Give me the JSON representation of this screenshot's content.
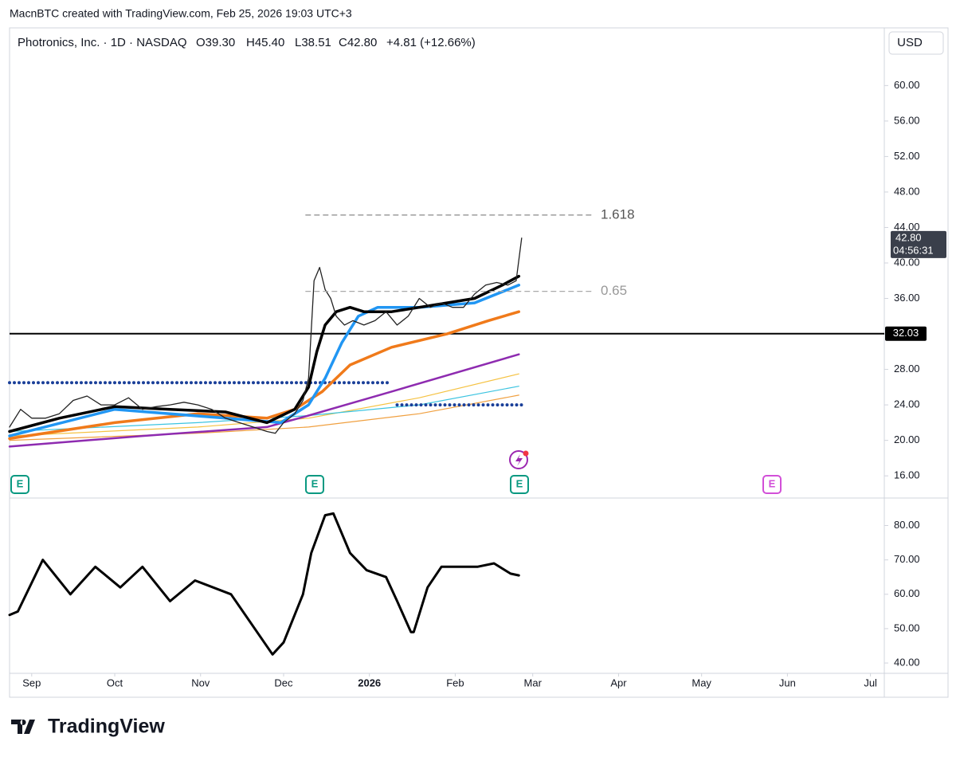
{
  "header": {
    "credit": "MacnBTC created with TradingView.com, Feb 25, 2026 19:03 UTC+3"
  },
  "legend": {
    "symbol": "Photronics, Inc. · 1D · NASDAQ",
    "open": "O39.30",
    "high": "H45.40",
    "low": "L38.51",
    "close": "C42.80",
    "change": "+4.81 (+12.66%)"
  },
  "currency": "USD",
  "footer": {
    "brand": "TradingView"
  },
  "chart_data": [
    {
      "type": "line",
      "xlim": [
        -8,
        308
      ],
      "ylim": [
        13.5,
        66.5
      ],
      "yticks": [
        {
          "value": 16,
          "label": "16.00"
        },
        {
          "value": 20,
          "label": "20.00"
        },
        {
          "value": 24,
          "label": "24.00"
        },
        {
          "value": 28,
          "label": "28.00"
        },
        {
          "value": 32,
          "label": "32.00"
        },
        {
          "value": 36,
          "label": "36.00"
        },
        {
          "value": 40,
          "label": "40.00"
        },
        {
          "value": 44,
          "label": "44.00"
        },
        {
          "value": 48,
          "label": "48.00"
        },
        {
          "value": 52,
          "label": "52.00"
        },
        {
          "value": 56,
          "label": "56.00"
        },
        {
          "value": 60,
          "label": "60.00"
        }
      ],
      "series": [
        {
          "color": "#f5c242",
          "line_style": "solid",
          "x": [
            -8,
            60,
            100,
            140,
            176
          ],
          "values": [
            20.5,
            21.5,
            22.5,
            24.8,
            27.5
          ]
        },
        {
          "color": "#3cc4e0",
          "line_style": "solid",
          "x": [
            -8,
            60,
            100,
            140,
            176
          ],
          "values": [
            21.0,
            22.0,
            22.8,
            24.0,
            26.1
          ]
        },
        {
          "color": "#f0a040",
          "line_style": "solid",
          "x": [
            -8,
            60,
            100,
            140,
            176
          ],
          "values": [
            20.0,
            20.8,
            21.5,
            23.0,
            25.1
          ]
        },
        {
          "color": "#1a3f99",
          "line_style": "dotted",
          "x": [
            -8,
            130
          ],
          "values": [
            26.5,
            26.5
          ]
        },
        {
          "color": "#1a3f99",
          "line_style": "dotted",
          "x": [
            132,
            177
          ],
          "values": [
            24.0,
            24.0
          ]
        },
        {
          "color": "#8e2bb0",
          "line_style": "solid",
          "x": [
            -8,
            40,
            85,
            100,
            130,
            176
          ],
          "values": [
            19.3,
            20.5,
            21.5,
            22.8,
            25.5,
            29.7
          ]
        },
        {
          "color": "#f07a1a",
          "line_style": "solid",
          "x": [
            -8,
            30,
            60,
            85,
            95,
            105,
            115,
            130,
            150,
            165,
            176
          ],
          "values": [
            20.2,
            22.0,
            23.0,
            22.5,
            23.5,
            25.5,
            28.5,
            30.5,
            32.0,
            33.5,
            34.5
          ]
        },
        {
          "color": "#2196f3",
          "line_style": "solid",
          "x": [
            -8,
            30,
            70,
            90,
            100,
            106,
            112,
            118,
            125,
            140,
            160,
            176
          ],
          "values": [
            20.5,
            23.5,
            22.5,
            22.0,
            24.0,
            27.0,
            31.0,
            34.0,
            35.0,
            35.0,
            35.5,
            37.5
          ]
        },
        {
          "color": "#000000",
          "line_style": "solid",
          "x": [
            -8,
            10,
            30,
            50,
            70,
            85,
            95,
            100,
            103,
            106,
            110,
            115,
            120,
            130,
            140,
            150,
            160,
            170,
            176
          ],
          "values": [
            21.0,
            22.5,
            23.8,
            23.5,
            23.2,
            22.0,
            23.5,
            26.0,
            30.0,
            33.0,
            34.5,
            35.0,
            34.5,
            34.5,
            35.0,
            35.5,
            36.0,
            37.5,
            38.5
          ]
        },
        {
          "color": "#222222",
          "line_style": "price",
          "x": [
            -8,
            -4,
            0,
            5,
            10,
            15,
            20,
            25,
            30,
            35,
            40,
            45,
            50,
            55,
            60,
            65,
            70,
            75,
            80,
            85,
            88,
            91,
            95,
            98,
            100,
            102,
            104,
            106,
            108,
            110,
            113,
            116,
            120,
            124,
            128,
            132,
            136,
            140,
            144,
            148,
            152,
            156,
            160,
            164,
            168,
            172,
            175,
            177
          ],
          "values": [
            21.5,
            23.5,
            22.5,
            22.5,
            23.0,
            24.5,
            25.0,
            24.0,
            24.0,
            24.8,
            23.5,
            23.8,
            24.0,
            24.3,
            24.0,
            23.5,
            22.5,
            22.0,
            21.5,
            21.0,
            20.8,
            22.0,
            23.0,
            24.5,
            27.0,
            38.0,
            39.5,
            37.0,
            36.0,
            34.0,
            33.0,
            33.5,
            33.0,
            33.5,
            34.5,
            33.0,
            34.0,
            36.0,
            35.0,
            35.5,
            35.0,
            35.0,
            36.5,
            37.5,
            37.8,
            37.5,
            38.0,
            42.8
          ]
        },
        {
          "color": "#888888",
          "line_style": "dashed",
          "x": [
            99,
            203
          ],
          "values": [
            45.4,
            45.4
          ]
        },
        {
          "color": "#aaaaaa",
          "line_style": "dashed",
          "x": [
            99,
            203
          ],
          "values": [
            36.8,
            36.8
          ]
        }
      ],
      "annotations": [
        {
          "text": "1.618",
          "y": 45.4
        },
        {
          "text": "0.65",
          "y": 36.8
        }
      ],
      "level": 32.03,
      "last_price": {
        "value": 42.8,
        "label": "42.80",
        "countdown": "04:56:31"
      }
    },
    {
      "type": "line",
      "xlim": [
        -8,
        308
      ],
      "ylim": [
        37,
        88
      ],
      "xticks": [
        {
          "value": 0,
          "label": "Sep"
        },
        {
          "value": 30,
          "label": "Oct"
        },
        {
          "value": 61,
          "label": "Nov"
        },
        {
          "value": 91,
          "label": "Dec"
        },
        {
          "value": 122,
          "label": "2026"
        },
        {
          "value": 153,
          "label": "Feb"
        },
        {
          "value": 181,
          "label": "Mar"
        },
        {
          "value": 212,
          "label": "Apr"
        },
        {
          "value": 242,
          "label": "May"
        },
        {
          "value": 273,
          "label": "Jun"
        },
        {
          "value": 303,
          "label": "Jul"
        }
      ],
      "yticks": [
        {
          "value": 40,
          "label": "40.00"
        },
        {
          "value": 50,
          "label": "50.00"
        },
        {
          "value": 60,
          "label": "60.00"
        },
        {
          "value": 70,
          "label": "70.00"
        },
        {
          "value": 80,
          "label": "80.00"
        }
      ],
      "series": [
        {
          "color": "#000000",
          "line_style": "solid",
          "x": [
            -8,
            -5,
            4,
            14,
            23,
            32,
            40,
            50,
            59,
            72,
            87,
            91,
            98,
            101,
            106,
            109,
            115,
            121,
            128,
            132,
            137,
            138,
            143,
            148,
            154,
            161,
            167,
            173,
            176
          ],
          "values": [
            54,
            55,
            70,
            60,
            68,
            62,
            68,
            58,
            64,
            60,
            42.5,
            46,
            60,
            72,
            83,
            83.5,
            72,
            67,
            65,
            58,
            49,
            49,
            62,
            68,
            68,
            68,
            69,
            66,
            65.5
          ]
        }
      ]
    }
  ]
}
